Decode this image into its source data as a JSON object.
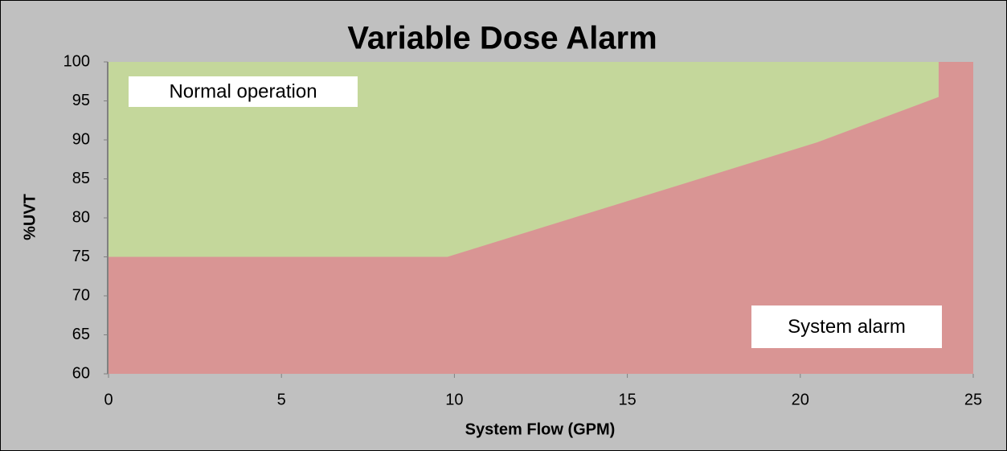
{
  "chart_data": {
    "type": "area",
    "title": "Variable Dose Alarm",
    "x_label": "System Flow (GPM)",
    "y_label": "%UVT",
    "annotations": [
      "Normal operation",
      "System alarm"
    ],
    "series": [
      {
        "color": "#c4d79b",
        "x": [
          0,
          24
        ],
        "values": [
          100,
          100
        ]
      },
      {
        "color": "#d99594",
        "x": [
          0,
          9.8,
          20.5,
          24,
          24,
          25
        ],
        "values": [
          75,
          75,
          89.7,
          95.5,
          100,
          100
        ]
      }
    ],
    "xlim": [
      0,
      25
    ],
    "xticks": [
      0,
      5,
      10,
      15,
      20,
      25
    ],
    "ylim": [
      60,
      100
    ],
    "yticks": [
      60,
      65,
      70,
      75,
      80,
      85,
      90,
      95,
      100
    ]
  }
}
